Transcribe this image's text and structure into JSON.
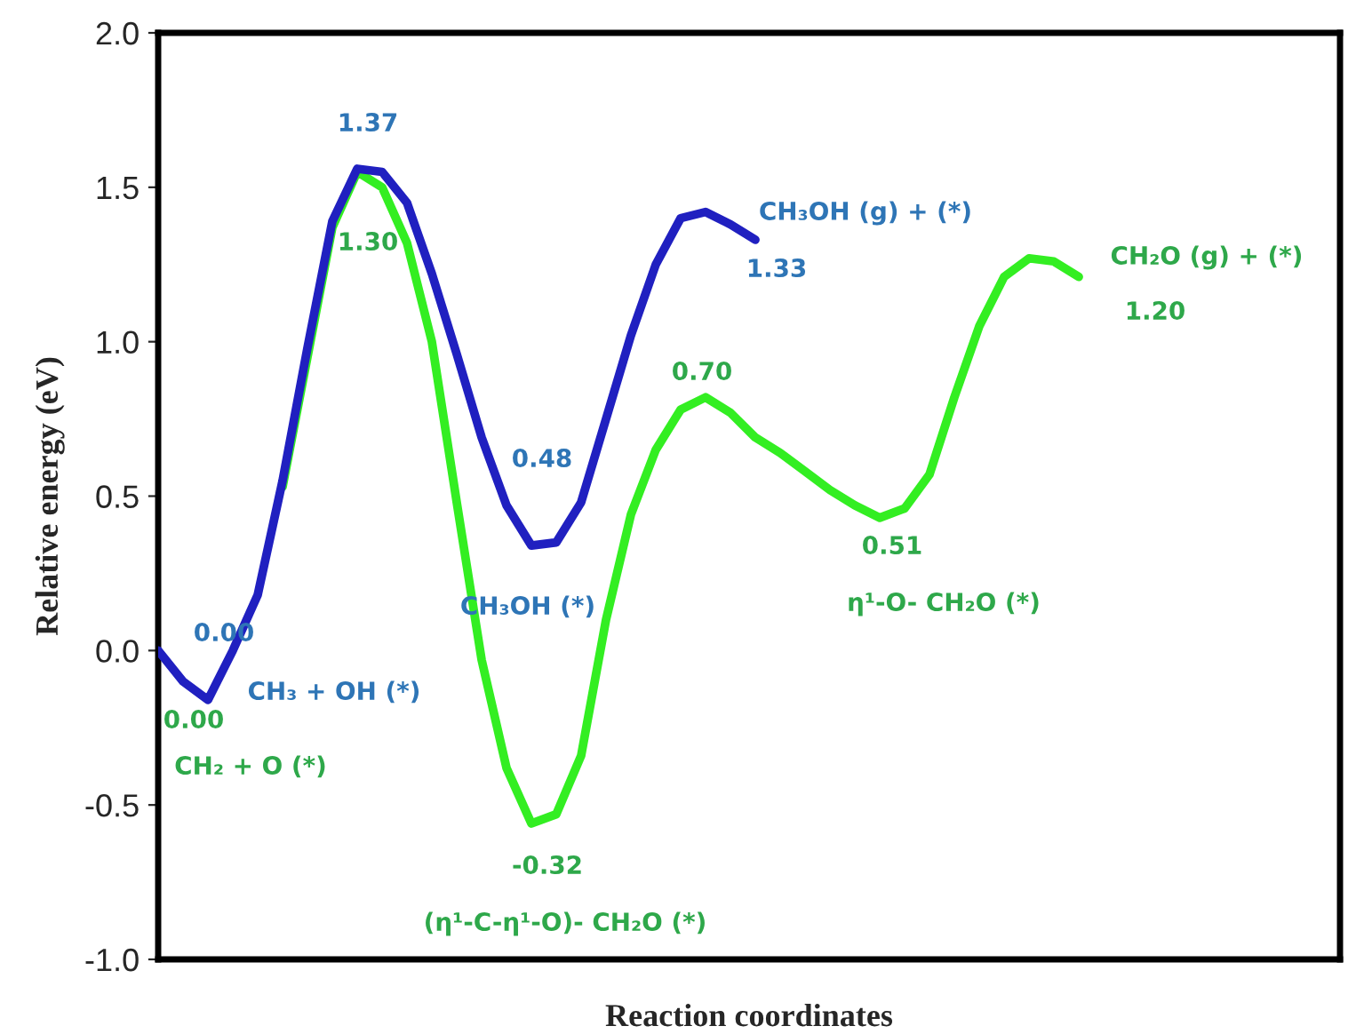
{
  "chart_data": {
    "type": "line",
    "xlabel": "Reaction coordinates",
    "ylabel": "Relative energy (eV)",
    "categories": [
      null,
      null,
      null,
      null,
      null,
      null,
      null,
      null,
      null,
      null,
      null,
      null,
      null,
      null,
      null,
      null,
      null,
      null,
      null,
      null,
      null,
      null,
      null,
      null,
      null,
      null,
      null,
      null,
      null,
      null,
      null,
      null,
      null,
      null,
      null,
      null,
      null,
      null,
      null,
      null,
      null,
      null,
      null,
      null,
      null,
      null,
      null,
      null
    ],
    "series": [
      {
        "color": "#2020c0",
        "values": [
          0.0,
          -0.1,
          -0.16,
          0.0,
          0.18,
          0.55,
          0.98,
          1.39,
          1.56,
          1.55,
          1.45,
          1.22,
          0.96,
          0.69,
          0.47,
          0.34,
          0.35,
          0.48,
          0.75,
          1.02,
          1.25,
          1.4,
          1.42,
          1.38,
          1.33,
          null,
          null,
          null,
          null,
          null,
          null,
          null,
          null,
          null,
          null,
          null,
          null,
          null,
          null,
          null,
          null,
          null,
          null,
          null,
          null,
          null,
          null,
          null
        ]
      },
      {
        "color": "#33ee22",
        "values": [
          null,
          null,
          null,
          null,
          null,
          0.53,
          0.95,
          1.37,
          1.55,
          1.5,
          1.32,
          1.0,
          0.48,
          -0.03,
          -0.38,
          -0.56,
          -0.53,
          -0.34,
          0.1,
          0.44,
          0.65,
          0.78,
          0.82,
          0.77,
          0.69,
          0.64,
          0.58,
          0.52,
          0.47,
          0.43,
          0.46,
          0.57,
          0.82,
          1.05,
          1.21,
          1.27,
          1.26,
          1.21,
          null,
          null,
          null,
          null,
          null,
          null,
          null,
          null,
          null,
          null
        ]
      }
    ],
    "ylim": [
      -1.0,
      2.0
    ],
    "yticks": [
      {
        "value": -1,
        "label": "-1.0"
      },
      -0.5,
      {
        "value": 0,
        "label": "0.0"
      },
      0.5,
      {
        "value": 1,
        "label": "1.0"
      },
      1.5,
      {
        "value": 2,
        "label": "2.0"
      }
    ],
    "grid": false,
    "legend": false,
    "tick_labels": "y",
    "annotations": [
      "0.00",
      "0.00",
      "CH₃ + OH (*)",
      "CH₂ + O (*)",
      "1.37",
      "1.30",
      "0.48",
      "CH₃OH (*)",
      "-0.32",
      "(η¹-C-η¹-O)- CH₂O (*)",
      "1.33",
      "CH₃OH (g) + (*)",
      "0.70",
      "0.51",
      "η¹-O- CH₂O (*)",
      "CH₂O (g) + (*)",
      "1.20"
    ]
  }
}
